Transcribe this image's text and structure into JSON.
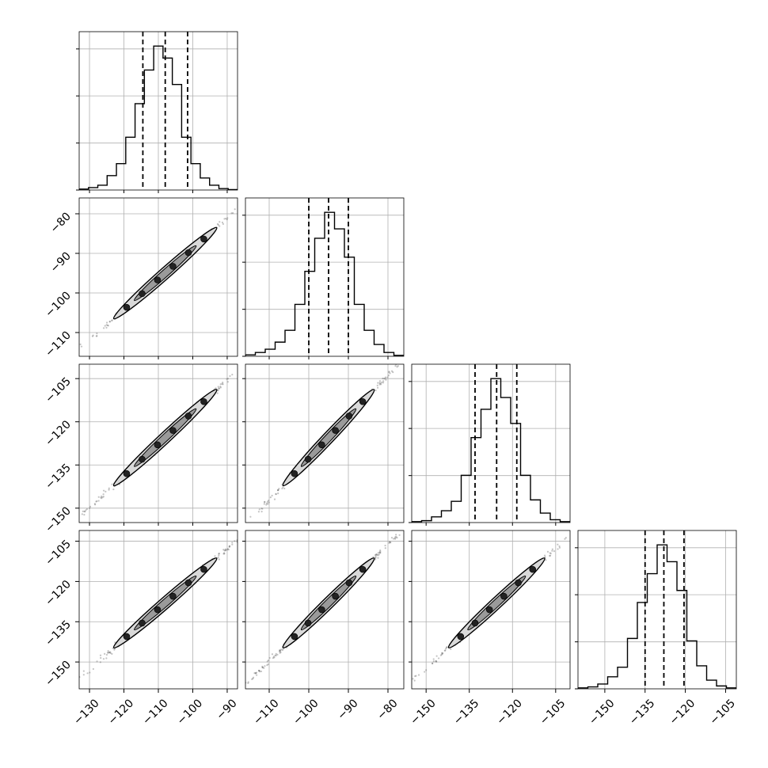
{
  "chart_data": {
    "type": "corner",
    "grid": true,
    "params": [
      {
        "ticks": [
          -130,
          -120,
          -110,
          -100,
          -90
        ],
        "tick_labels": [
          "−130",
          "−120",
          "−110",
          "−100",
          "−90"
        ],
        "range": [
          -133,
          -87
        ],
        "quantiles": [
          -114.5,
          -108,
          -101.5
        ],
        "hist_counts": [
          2,
          5,
          10,
          30,
          55,
          110,
          180,
          250,
          300,
          275,
          220,
          110,
          55,
          25,
          10,
          3,
          1
        ]
      },
      {
        "ticks": [
          -110,
          -100,
          -90,
          -80
        ],
        "tick_labels": [
          "−110",
          "−100",
          "−90",
          "−80"
        ],
        "range": [
          -116,
          -76
        ],
        "quantiles": [
          -100,
          -95,
          -90
        ],
        "hist_counts": [
          3,
          8,
          15,
          30,
          55,
          110,
          180,
          250,
          305,
          270,
          210,
          110,
          55,
          25,
          8,
          2
        ]
      },
      {
        "ticks": [
          -150,
          -135,
          -120,
          -105
        ],
        "tick_labels": [
          "−150",
          "−135",
          "−120",
          "−105"
        ],
        "range": [
          -155,
          -100
        ],
        "quantiles": [
          -133,
          -125.5,
          -118.5
        ],
        "hist_counts": [
          2,
          4,
          12,
          25,
          45,
          100,
          180,
          240,
          305,
          265,
          210,
          100,
          48,
          20,
          6,
          2
        ]
      },
      {
        "ticks": [
          -150,
          -135,
          -120,
          -105
        ],
        "tick_labels": [
          "−150",
          "−135",
          "−120",
          "−105"
        ],
        "range": [
          -160,
          -101
        ],
        "quantiles": [
          -135,
          -128,
          -120.5
        ],
        "hist_counts": [
          2,
          4,
          10,
          25,
          45,
          105,
          180,
          240,
          300,
          265,
          205,
          100,
          48,
          18,
          6,
          2
        ]
      }
    ],
    "colors": {
      "line": "#000000",
      "grid": "#b0b0b0",
      "scatter": "#555555",
      "contour_fill": "#d9d9d9"
    }
  }
}
